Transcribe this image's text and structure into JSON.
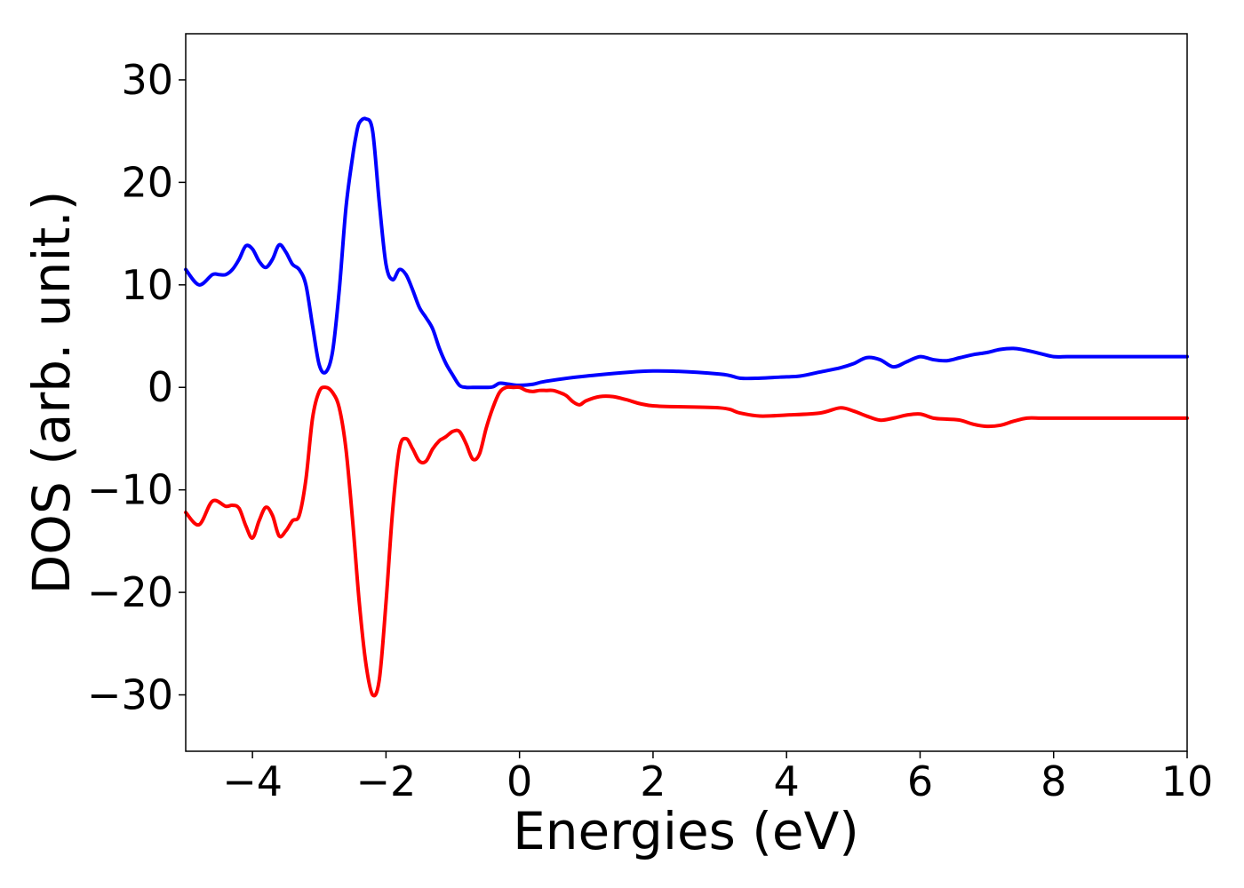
{
  "chart_data": {
    "type": "line",
    "title": "",
    "xlabel": "Energies (eV)",
    "ylabel": "DOS (arb. unit.)",
    "xlim": [
      -5,
      10
    ],
    "ylim": [
      -35.5,
      34.5
    ],
    "x_ticks": [
      -4,
      -2,
      0,
      2,
      4,
      6,
      8,
      10
    ],
    "y_ticks": [
      -30,
      -20,
      -10,
      0,
      10,
      20,
      30
    ],
    "x_tick_labels": [
      "−4",
      "−2",
      "0",
      "2",
      "4",
      "6",
      "8",
      "10"
    ],
    "y_tick_labels": [
      "−30",
      "−20",
      "−10",
      "0",
      "10",
      "20",
      "30"
    ],
    "grid": false,
    "legend": "none",
    "series": [
      {
        "color": "#0000ff",
        "x": [
          -5.0,
          -4.8,
          -4.6,
          -4.5,
          -4.4,
          -4.3,
          -4.2,
          -4.1,
          -4.0,
          -3.9,
          -3.8,
          -3.7,
          -3.6,
          -3.5,
          -3.4,
          -3.3,
          -3.2,
          -3.1,
          -3.0,
          -2.9,
          -2.8,
          -2.7,
          -2.6,
          -2.5,
          -2.45,
          -2.4,
          -2.3,
          -2.2,
          -2.1,
          -2.0,
          -1.9,
          -1.8,
          -1.7,
          -1.6,
          -1.5,
          -1.4,
          -1.3,
          -1.2,
          -1.1,
          -1.0,
          -0.9,
          -0.8,
          -0.7,
          -0.6,
          -0.5,
          -0.4,
          -0.3,
          -0.2,
          -0.1,
          0.0,
          0.2,
          0.4,
          1.0,
          2.0,
          3.0,
          3.3,
          3.6,
          3.9,
          4.2,
          4.5,
          4.8,
          5.0,
          5.2,
          5.4,
          5.6,
          5.8,
          6.0,
          6.2,
          6.4,
          6.6,
          6.8,
          7.0,
          7.2,
          7.4,
          7.6,
          7.8,
          8.0,
          8.2,
          8.4,
          8.6,
          8.8,
          9.0,
          9.2,
          9.4,
          9.6,
          9.8,
          10.0
        ],
        "values": [
          11.5,
          10.0,
          11.0,
          11.0,
          11.0,
          11.5,
          12.5,
          13.8,
          13.5,
          12.3,
          11.7,
          12.5,
          13.9,
          13.2,
          12.0,
          11.5,
          10.0,
          6.0,
          2.2,
          1.5,
          3.5,
          9.5,
          17.5,
          22.5,
          24.5,
          25.8,
          26.2,
          25.0,
          18.0,
          12.0,
          10.5,
          11.5,
          11.0,
          9.5,
          7.8,
          6.8,
          5.7,
          3.8,
          2.3,
          1.2,
          0.2,
          0.0,
          0.0,
          0.0,
          0.0,
          0.05,
          0.4,
          0.35,
          0.25,
          0.2,
          0.3,
          0.6,
          1.1,
          1.6,
          1.3,
          0.9,
          0.9,
          1.0,
          1.1,
          1.5,
          1.9,
          2.3,
          2.9,
          2.7,
          2.0,
          2.5,
          3.0,
          2.7,
          2.6,
          2.9,
          3.2,
          3.4,
          3.7,
          3.8,
          3.6,
          3.3,
          3.0,
          3.0,
          3.0,
          3.0,
          3.0,
          3.0,
          3.0,
          3.0,
          3.0,
          3.0,
          3.0
        ]
      },
      {
        "color": "#ff0000",
        "x": [
          -5.0,
          -4.8,
          -4.6,
          -4.4,
          -4.3,
          -4.2,
          -4.1,
          -4.0,
          -3.9,
          -3.8,
          -3.7,
          -3.6,
          -3.5,
          -3.4,
          -3.3,
          -3.2,
          -3.1,
          -3.0,
          -2.9,
          -2.8,
          -2.7,
          -2.6,
          -2.5,
          -2.4,
          -2.3,
          -2.2,
          -2.1,
          -2.0,
          -1.9,
          -1.8,
          -1.7,
          -1.6,
          -1.5,
          -1.4,
          -1.3,
          -1.2,
          -1.15,
          -1.1,
          -1.0,
          -0.9,
          -0.8,
          -0.7,
          -0.6,
          -0.5,
          -0.4,
          -0.3,
          -0.2,
          -0.1,
          0.0,
          0.1,
          0.2,
          0.3,
          0.4,
          0.5,
          0.6,
          0.7,
          0.8,
          0.9,
          1.0,
          1.2,
          1.4,
          1.6,
          2.0,
          3.0,
          3.3,
          3.6,
          4.0,
          4.5,
          4.8,
          5.0,
          5.2,
          5.4,
          5.6,
          5.8,
          6.0,
          6.2,
          6.4,
          6.6,
          6.8,
          7.0,
          7.2,
          7.4,
          7.6,
          7.8,
          8.0,
          8.1,
          8.2,
          8.3,
          8.4,
          8.5,
          8.6,
          8.7,
          8.8,
          9.0,
          9.2,
          9.4,
          9.6,
          9.8,
          10.0
        ],
        "values": [
          -12.2,
          -13.4,
          -11.1,
          -11.6,
          -11.5,
          -11.8,
          -13.5,
          -14.7,
          -13.0,
          -11.7,
          -12.5,
          -14.5,
          -14.0,
          -13.0,
          -12.5,
          -9.0,
          -3.0,
          -0.4,
          0.0,
          -0.5,
          -2.0,
          -6.0,
          -13.0,
          -21.0,
          -27.0,
          -30.0,
          -28.5,
          -21.0,
          -12.0,
          -6.0,
          -5.0,
          -6.0,
          -7.2,
          -7.2,
          -6.0,
          -5.2,
          -5.0,
          -4.8,
          -4.3,
          -4.3,
          -5.5,
          -7.0,
          -6.5,
          -4.0,
          -2.0,
          -0.5,
          0.0,
          0.0,
          0.0,
          -0.3,
          -0.4,
          -0.3,
          -0.3,
          -0.3,
          -0.5,
          -0.8,
          -1.4,
          -1.7,
          -1.3,
          -0.9,
          -0.9,
          -1.2,
          -1.8,
          -2.0,
          -2.5,
          -2.8,
          -2.7,
          -2.5,
          -2.0,
          -2.3,
          -2.8,
          -3.2,
          -3.0,
          -2.7,
          -2.6,
          -3.0,
          -3.1,
          -3.2,
          -3.6,
          -3.8,
          -3.7,
          -3.3,
          -3.0,
          -3.0,
          -3.0,
          -3.0,
          -3.0,
          -3.0,
          -3.0,
          -3.0,
          -3.0,
          -3.0,
          -3.0,
          -3.0,
          -3.0,
          -3.0,
          -3.0,
          -3.0,
          -3.0
        ]
      }
    ]
  }
}
